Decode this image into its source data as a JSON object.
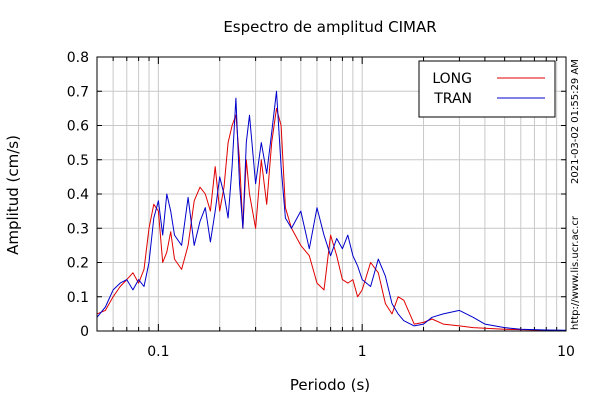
{
  "chart_data": {
    "type": "line",
    "title": "Espectro de amplitud CIMAR",
    "xlabel": "Periodo (s)",
    "ylabel": "Amplitud (cm/s)",
    "x_scale": "log",
    "xlim": [
      0.05,
      10
    ],
    "ylim": [
      0,
      0.8
    ],
    "y_ticks": [
      0,
      0.1,
      0.2,
      0.3,
      0.4,
      0.5,
      0.6,
      0.7,
      0.8
    ],
    "y_tick_labels": [
      "0",
      "0.1",
      "0.2",
      "0.3",
      "0.4",
      "0.5",
      "0.6",
      "0.7",
      "0.8"
    ],
    "x_ticks": [
      0.1,
      1,
      10
    ],
    "x_tick_labels": [
      "0.1",
      "1",
      "10"
    ],
    "grid": true,
    "legend_position": "top-right",
    "side_text": [
      "2021-03-02 01:55:29 AM",
      "http://www.lis.ucr.ac.cr"
    ],
    "series": [
      {
        "name": "LONG",
        "color": "#e00000",
        "x": [
          0.05,
          0.055,
          0.06,
          0.065,
          0.07,
          0.075,
          0.08,
          0.085,
          0.09,
          0.095,
          0.1,
          0.105,
          0.11,
          0.115,
          0.12,
          0.13,
          0.14,
          0.15,
          0.16,
          0.17,
          0.18,
          0.19,
          0.2,
          0.21,
          0.22,
          0.23,
          0.24,
          0.25,
          0.26,
          0.27,
          0.28,
          0.3,
          0.32,
          0.34,
          0.36,
          0.38,
          0.4,
          0.42,
          0.45,
          0.5,
          0.55,
          0.6,
          0.65,
          0.7,
          0.75,
          0.8,
          0.85,
          0.9,
          0.95,
          1.0,
          1.1,
          1.2,
          1.3,
          1.4,
          1.5,
          1.6,
          1.8,
          2.0,
          2.2,
          2.5,
          3.0,
          3.5,
          4,
          5,
          6,
          8,
          10
        ],
        "y": [
          0.05,
          0.06,
          0.1,
          0.13,
          0.15,
          0.17,
          0.14,
          0.18,
          0.3,
          0.37,
          0.35,
          0.2,
          0.23,
          0.29,
          0.21,
          0.18,
          0.25,
          0.38,
          0.42,
          0.4,
          0.35,
          0.48,
          0.35,
          0.42,
          0.55,
          0.6,
          0.63,
          0.5,
          0.3,
          0.5,
          0.4,
          0.3,
          0.5,
          0.37,
          0.55,
          0.65,
          0.6,
          0.36,
          0.3,
          0.25,
          0.22,
          0.14,
          0.12,
          0.28,
          0.22,
          0.15,
          0.14,
          0.15,
          0.1,
          0.12,
          0.2,
          0.17,
          0.08,
          0.05,
          0.1,
          0.09,
          0.02,
          0.025,
          0.035,
          0.02,
          0.015,
          0.01,
          0.008,
          0.005,
          0.004,
          0.002,
          0.001
        ]
      },
      {
        "name": "TRAN",
        "color": "#0000cc",
        "x": [
          0.05,
          0.055,
          0.06,
          0.065,
          0.07,
          0.075,
          0.08,
          0.085,
          0.09,
          0.095,
          0.1,
          0.105,
          0.11,
          0.115,
          0.12,
          0.13,
          0.14,
          0.15,
          0.16,
          0.17,
          0.18,
          0.19,
          0.2,
          0.21,
          0.22,
          0.23,
          0.24,
          0.25,
          0.26,
          0.27,
          0.28,
          0.3,
          0.32,
          0.34,
          0.36,
          0.38,
          0.4,
          0.42,
          0.45,
          0.5,
          0.55,
          0.6,
          0.65,
          0.7,
          0.75,
          0.8,
          0.85,
          0.9,
          0.95,
          1.0,
          1.1,
          1.2,
          1.3,
          1.4,
          1.5,
          1.6,
          1.8,
          2.0,
          2.2,
          2.5,
          3.0,
          3.5,
          4,
          5,
          6,
          8,
          10
        ],
        "y": [
          0.04,
          0.07,
          0.12,
          0.14,
          0.15,
          0.12,
          0.15,
          0.13,
          0.2,
          0.33,
          0.38,
          0.28,
          0.4,
          0.35,
          0.28,
          0.25,
          0.39,
          0.25,
          0.32,
          0.36,
          0.26,
          0.35,
          0.45,
          0.4,
          0.33,
          0.48,
          0.68,
          0.43,
          0.3,
          0.55,
          0.63,
          0.43,
          0.55,
          0.46,
          0.58,
          0.7,
          0.48,
          0.33,
          0.3,
          0.35,
          0.24,
          0.36,
          0.28,
          0.22,
          0.27,
          0.24,
          0.28,
          0.22,
          0.19,
          0.15,
          0.13,
          0.21,
          0.16,
          0.08,
          0.05,
          0.03,
          0.015,
          0.02,
          0.04,
          0.05,
          0.06,
          0.04,
          0.02,
          0.01,
          0.005,
          0.003,
          0.002
        ]
      }
    ]
  }
}
